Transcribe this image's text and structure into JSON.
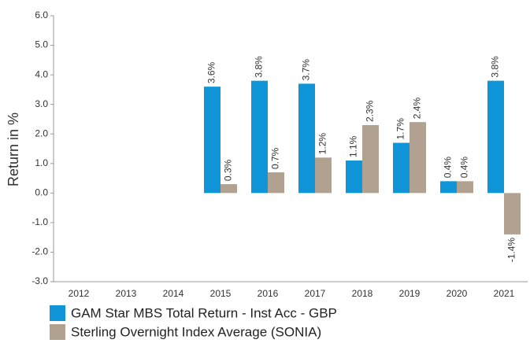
{
  "chart_data": {
    "type": "bar",
    "y_label": "Return in %",
    "categories": [
      "2012",
      "2013",
      "2014",
      "2015",
      "2016",
      "2017",
      "2018",
      "2019",
      "2020",
      "2021"
    ],
    "series": [
      {
        "name": "GAM Star MBS Total Return - Inst Acc - GBP",
        "color": "#0f95d8",
        "values": [
          null,
          null,
          null,
          3.6,
          3.8,
          3.7,
          1.1,
          1.7,
          0.4,
          3.8
        ],
        "value_labels": [
          null,
          null,
          null,
          "3.6%",
          "3.8%",
          "3.7%",
          "1.1%",
          "1.7%",
          "0.4%",
          "3.8%"
        ]
      },
      {
        "name": "Sterling Overnight Index Average (SONIA)",
        "color": "#b0a190",
        "values": [
          null,
          null,
          null,
          0.3,
          0.7,
          1.2,
          2.3,
          2.4,
          0.4,
          -1.4
        ],
        "value_labels": [
          null,
          null,
          null,
          "0.3%",
          "0.7%",
          "1.2%",
          "2.3%",
          "2.4%",
          "0.4%",
          "-1.4%"
        ]
      }
    ],
    "ylim": [
      -3,
      6
    ],
    "yticks": [
      {
        "value": -3,
        "label": "-3.0"
      },
      {
        "value": -2,
        "label": "-2.0"
      },
      {
        "value": -1,
        "label": "-1.0"
      },
      {
        "value": 0,
        "label": "0.0"
      },
      {
        "value": 1,
        "label": "1.0"
      },
      {
        "value": 2,
        "label": "2.0"
      },
      {
        "value": 3,
        "label": "3.0"
      },
      {
        "value": 4,
        "label": "4.0"
      },
      {
        "value": 5,
        "label": "5.0"
      },
      {
        "value": 6,
        "label": "6.0"
      }
    ],
    "grid": false,
    "legend": "bottom"
  }
}
